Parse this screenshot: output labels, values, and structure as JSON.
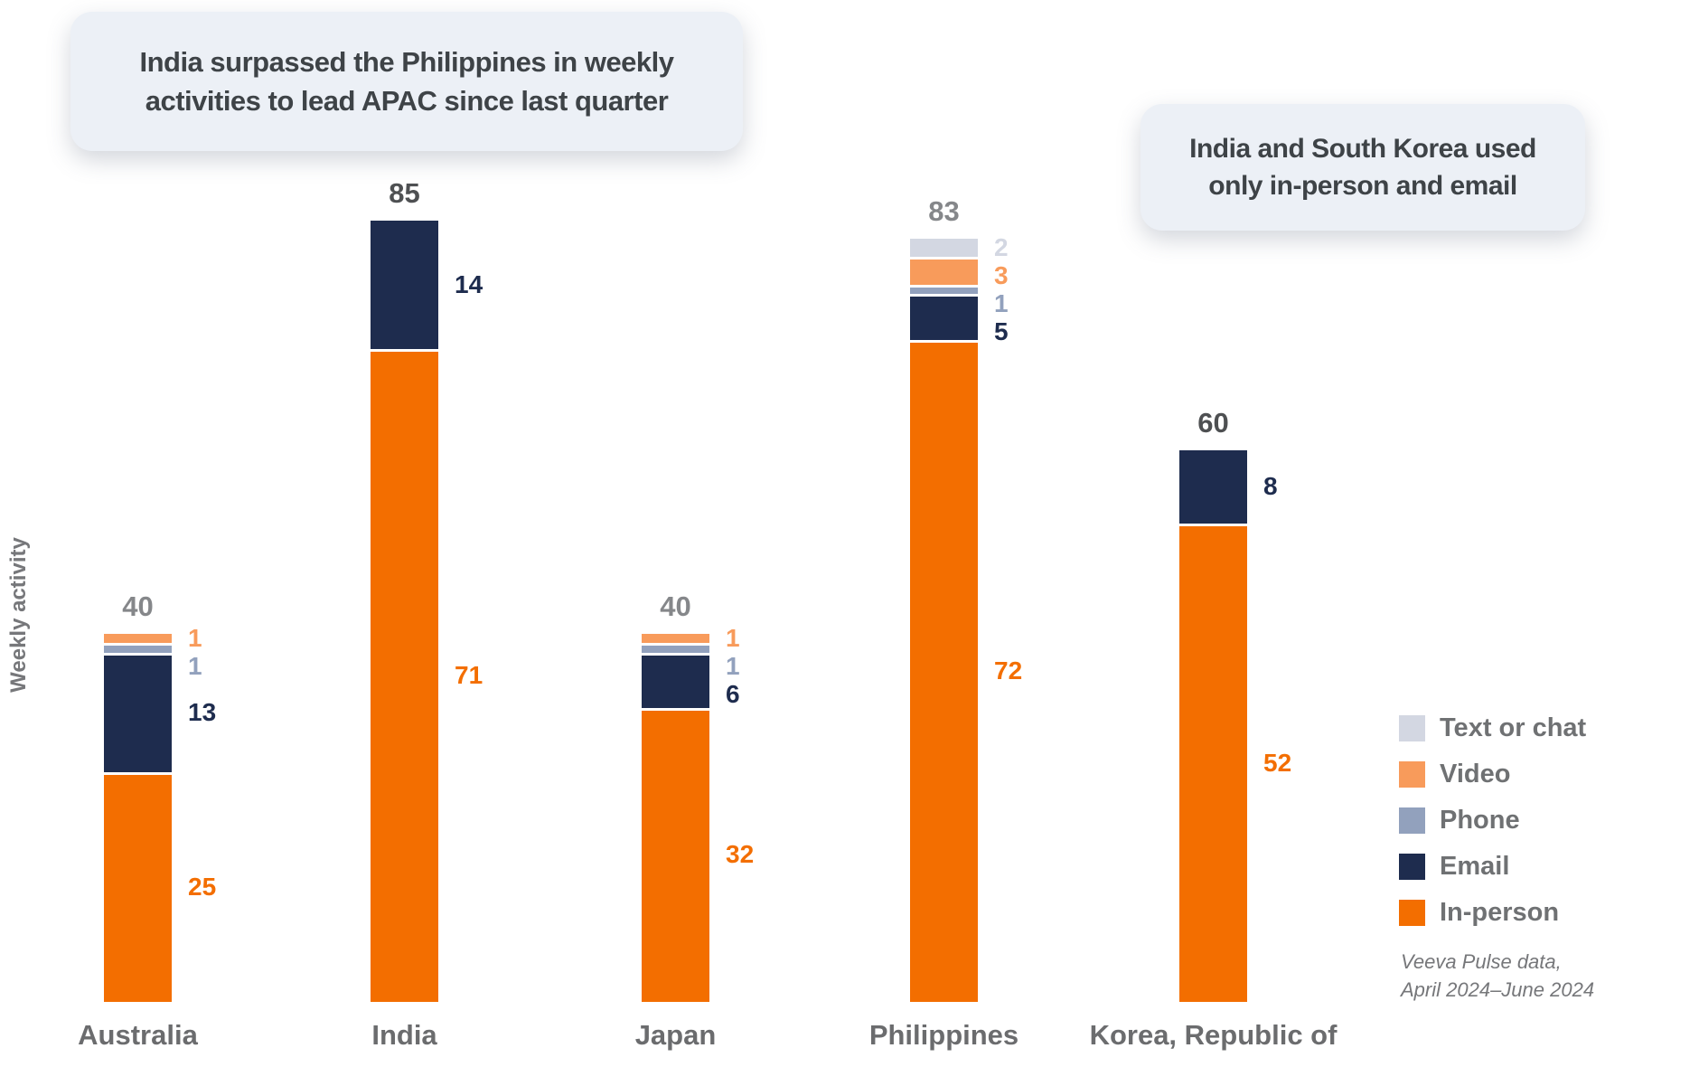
{
  "callouts": {
    "main": {
      "line1": "India surpassed the Philippines in weekly",
      "line2": "activities to lead APAC since last quarter"
    },
    "secondary": {
      "line1": "India and South Korea used",
      "line2": "only in-person and email"
    }
  },
  "source": {
    "line1": "Veeva Pulse data,",
    "line2": "April 2024–June 2024"
  },
  "colors": {
    "panel_bg": "#ECF0F6",
    "panel_text": "#3E4347",
    "total_label": "#85878A",
    "total_label_emphasis": "#4E5052",
    "category_label": "#6B6C6E",
    "legend_label": "#6F7173",
    "source_text": "#76777A",
    "ylabel_text": "#76777A"
  },
  "chart_data": {
    "type": "bar",
    "stacked": true,
    "title": "India surpassed the Philippines in weekly activities to lead APAC since last quarter",
    "annotation": "India and South Korea used only in-person and email",
    "ylabel": "Weekly activity",
    "xlabel": "",
    "ylim": [
      0,
      90
    ],
    "grid": false,
    "legend_position": "right",
    "categories": [
      "Australia",
      "India",
      "Japan",
      "Philippines",
      "Korea, Republic of"
    ],
    "series": [
      {
        "name": "Text or chat",
        "color": "#D3D7E2",
        "values": [
          0,
          0,
          0,
          2,
          0
        ]
      },
      {
        "name": "Video",
        "color": "#F89B5B",
        "values": [
          1,
          0,
          1,
          3,
          0
        ]
      },
      {
        "name": "Phone",
        "color": "#92A1BD",
        "values": [
          1,
          0,
          1,
          1,
          0
        ]
      },
      {
        "name": "Email",
        "color": "#1E2C4E",
        "values": [
          13,
          14,
          6,
          5,
          8
        ]
      },
      {
        "name": "In-person",
        "color": "#F36E00",
        "values": [
          25,
          71,
          32,
          72,
          52
        ]
      }
    ],
    "totals": [
      40,
      85,
      40,
      83,
      60
    ],
    "totals_emphasized": [
      false,
      true,
      false,
      false,
      true
    ],
    "source": "Veeva Pulse data, April 2024–June 2024"
  }
}
